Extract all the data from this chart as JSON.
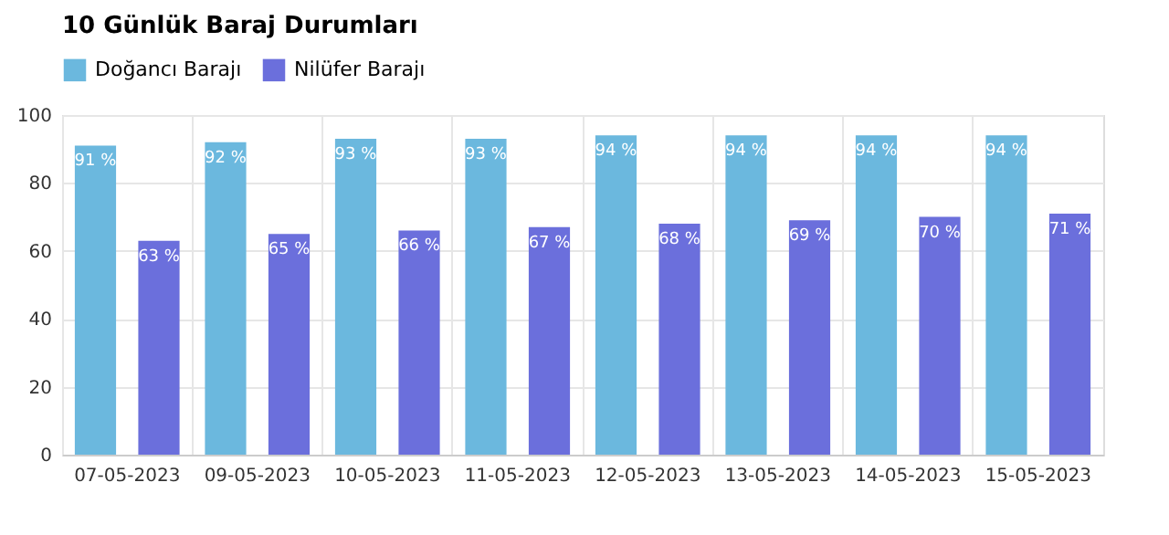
{
  "chart_data": {
    "type": "bar",
    "title": "10 Günlük Baraj Durumları",
    "categories": [
      "07-05-2023",
      "09-05-2023",
      "10-05-2023",
      "11-05-2023",
      "12-05-2023",
      "13-05-2023",
      "14-05-2023",
      "15-05-2023"
    ],
    "series": [
      {
        "name": "Doğancı Barajı",
        "color": "#6bb8de",
        "values": [
          91,
          92,
          93,
          93,
          94,
          94,
          94,
          94
        ],
        "value_labels": [
          "91 %",
          "92 %",
          "93 %",
          "93 %",
          "94 %",
          "94 %",
          "94 %",
          "94 %"
        ]
      },
      {
        "name": "Nilüfer Barajı",
        "color": "#6b6fdc",
        "values": [
          63,
          65,
          66,
          67,
          68,
          69,
          70,
          71
        ],
        "value_labels": [
          "63 %",
          "65 %",
          "66 %",
          "67 %",
          "68 %",
          "69 %",
          "70 %",
          "71 %"
        ]
      }
    ],
    "ylim": [
      0,
      100
    ],
    "yticks": [
      0,
      20,
      40,
      60,
      80,
      100
    ],
    "grid": true,
    "legend": "top"
  }
}
